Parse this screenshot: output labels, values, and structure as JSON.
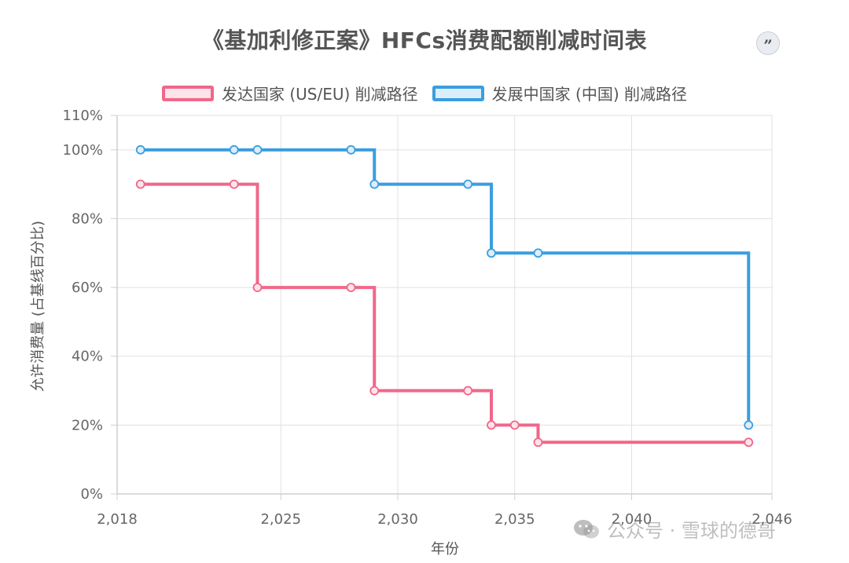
{
  "title": "《基加利修正案》HFCs消费配额削减时间表",
  "quote_icon": "quote-icon",
  "watermark": {
    "text": "公众号 · 雪球的德哥",
    "icon": "wechat-icon"
  },
  "chart_data": {
    "type": "line",
    "step": true,
    "xlabel": "年份",
    "ylabel": "允许消费量 (占基线百分比)",
    "xlim": [
      2018,
      2046
    ],
    "ylim": [
      0,
      110
    ],
    "x_ticks": [
      2018,
      2025,
      2030,
      2035,
      2040,
      2046
    ],
    "x_tick_labels": [
      "2,018",
      "2,025",
      "2,030",
      "2,035",
      "2,040",
      "2,046"
    ],
    "y_ticks": [
      0,
      20,
      40,
      60,
      80,
      100,
      110
    ],
    "y_tick_labels": [
      "0%",
      "20%",
      "40%",
      "60%",
      "80%",
      "100%",
      "110%"
    ],
    "grid": true,
    "legend_position": "top-center",
    "series": [
      {
        "name": "发达国家 (US/EU) 削减路径",
        "color": "#f0678a",
        "fill": "#fde4ea",
        "points": [
          [
            2019,
            90
          ],
          [
            2023,
            90
          ],
          [
            2024,
            60
          ],
          [
            2028,
            60
          ],
          [
            2029,
            30
          ],
          [
            2033,
            30
          ],
          [
            2034,
            20
          ],
          [
            2035,
            20
          ],
          [
            2036,
            15
          ],
          [
            2045,
            15
          ]
        ]
      },
      {
        "name": "发展中国家 (中国) 削减路径",
        "color": "#3a9ee0",
        "fill": "#dceefb",
        "points": [
          [
            2019,
            100
          ],
          [
            2023,
            100
          ],
          [
            2024,
            100
          ],
          [
            2028,
            100
          ],
          [
            2029,
            90
          ],
          [
            2033,
            90
          ],
          [
            2034,
            70
          ],
          [
            2036,
            70
          ],
          [
            2045,
            20
          ]
        ]
      }
    ]
  }
}
